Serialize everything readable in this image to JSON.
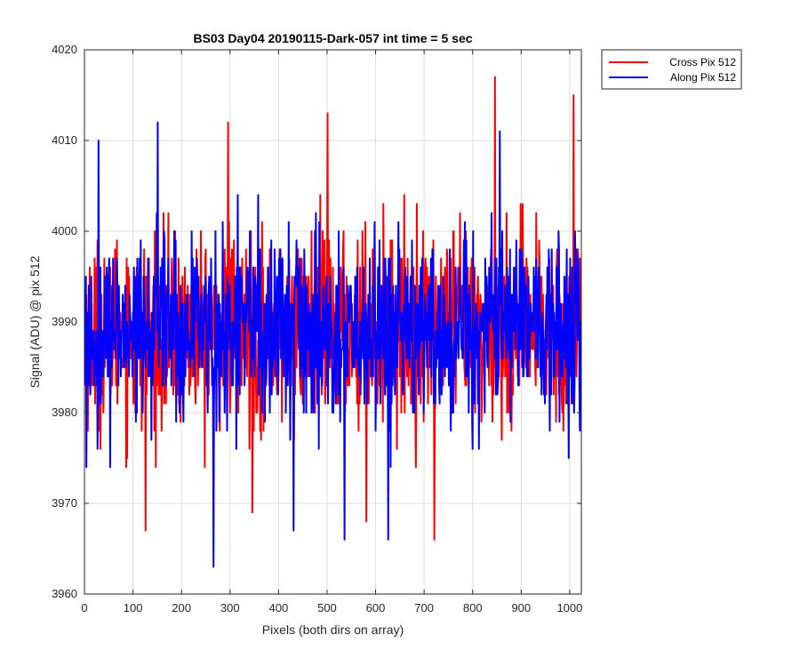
{
  "chart_data": {
    "type": "line",
    "title": "BS03 Day04 20190115-Dark-057 int time = 5 sec",
    "xlabel": "Pixels (both dirs on array)",
    "ylabel": "Signal (ADU) @ pix 512",
    "xlim": [
      0,
      1024
    ],
    "ylim": [
      3960,
      4020
    ],
    "xticks": [
      0,
      100,
      200,
      300,
      400,
      500,
      600,
      700,
      800,
      900,
      1000
    ],
    "yticks": [
      3960,
      3970,
      3980,
      3990,
      4000,
      4010,
      4020
    ],
    "grid": true,
    "legend_position": "outside-top-right",
    "series": [
      {
        "name": "Cross Pix 512",
        "color": "#ff0000",
        "mean": 3989,
        "points": 1024,
        "max": [
          [
            845,
            4017
          ],
          [
            1007,
            4015
          ],
          [
            500,
            4013
          ],
          [
            295,
            4012
          ]
        ],
        "min": [
          [
            125,
            3967
          ],
          [
            720,
            3966
          ],
          [
            345,
            3969
          ],
          [
            580,
            3968
          ]
        ]
      },
      {
        "name": "Along Pix 512",
        "color": "#0000ff",
        "mean": 3989,
        "points": 1024,
        "max": [
          [
            150,
            4012
          ],
          [
            855,
            4011
          ],
          [
            28,
            4010
          ]
        ],
        "min": [
          [
            265,
            3963
          ],
          [
            535,
            3966
          ],
          [
            625,
            3966
          ],
          [
            430,
            3967
          ]
        ]
      }
    ]
  }
}
